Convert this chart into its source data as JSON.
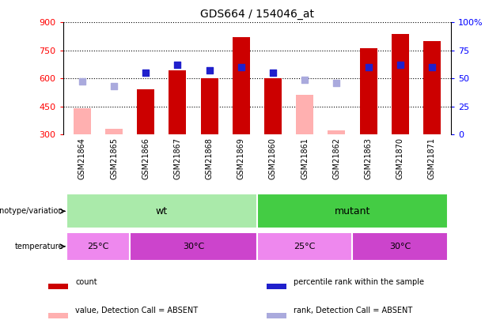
{
  "title": "GDS664 / 154046_at",
  "samples": [
    "GSM21864",
    "GSM21865",
    "GSM21866",
    "GSM21867",
    "GSM21868",
    "GSM21869",
    "GSM21860",
    "GSM21861",
    "GSM21862",
    "GSM21863",
    "GSM21870",
    "GSM21871"
  ],
  "count_values": [
    null,
    null,
    540,
    645,
    600,
    820,
    600,
    null,
    null,
    760,
    840,
    800
  ],
  "count_absent": [
    440,
    330,
    null,
    null,
    null,
    null,
    null,
    510,
    320,
    null,
    null,
    null
  ],
  "rank_values_pct": [
    null,
    null,
    55,
    62,
    57,
    60,
    55,
    null,
    null,
    60,
    62,
    60
  ],
  "rank_absent_pct": [
    47,
    43,
    null,
    null,
    null,
    null,
    null,
    49,
    46,
    null,
    null,
    null
  ],
  "ylim_left": [
    300,
    900
  ],
  "ylim_right": [
    0,
    100
  ],
  "yticks_left": [
    300,
    450,
    600,
    750,
    900
  ],
  "yticks_right": [
    0,
    25,
    50,
    75,
    100
  ],
  "bar_color": "#cc0000",
  "absent_bar_color": "#ffb0b0",
  "rank_color": "#2020cc",
  "rank_absent_color": "#aaaadd",
  "genotype_groups": [
    {
      "label": "wt",
      "start": 0,
      "end": 5,
      "color": "#aaeaaa"
    },
    {
      "label": "mutant",
      "start": 6,
      "end": 11,
      "color": "#44cc44"
    }
  ],
  "temp_groups": [
    {
      "label": "25°C",
      "start": 0,
      "end": 1,
      "color": "#ee88ee"
    },
    {
      "label": "30°C",
      "start": 2,
      "end": 5,
      "color": "#cc44cc"
    },
    {
      "label": "25°C",
      "start": 6,
      "end": 8,
      "color": "#ee88ee"
    },
    {
      "label": "30°C",
      "start": 9,
      "end": 11,
      "color": "#cc44cc"
    }
  ],
  "legend_items": [
    {
      "label": "count",
      "color": "#cc0000"
    },
    {
      "label": "percentile rank within the sample",
      "color": "#2020cc"
    },
    {
      "label": "value, Detection Call = ABSENT",
      "color": "#ffb0b0"
    },
    {
      "label": "rank, Detection Call = ABSENT",
      "color": "#aaaadd"
    }
  ]
}
